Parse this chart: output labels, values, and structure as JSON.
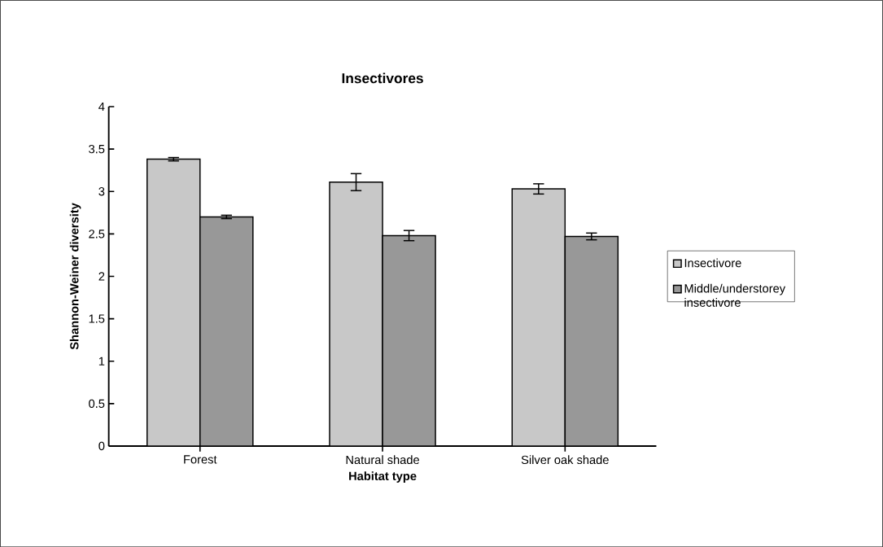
{
  "chart_data": {
    "type": "bar",
    "title": "Insectivores",
    "xlabel": "Habitat type",
    "ylabel": "Shannon-Weiner diversity",
    "categories": [
      "Forest",
      "Natural shade",
      "Silver oak shade"
    ],
    "series": [
      {
        "name": "Insectivore",
        "color": "#c8c8c8",
        "values": [
          3.38,
          3.11,
          3.03
        ],
        "errors": [
          0.02,
          0.1,
          0.06
        ]
      },
      {
        "name": "Middle/understorey insectivore",
        "color": "#989898",
        "values": [
          2.7,
          2.48,
          2.47
        ],
        "errors": [
          0.02,
          0.06,
          0.04
        ]
      }
    ],
    "ylim": [
      0,
      4
    ],
    "yticks": [
      0,
      0.5,
      1,
      1.5,
      2,
      2.5,
      3,
      3.5,
      4
    ],
    "grid": false,
    "legend": "right"
  }
}
